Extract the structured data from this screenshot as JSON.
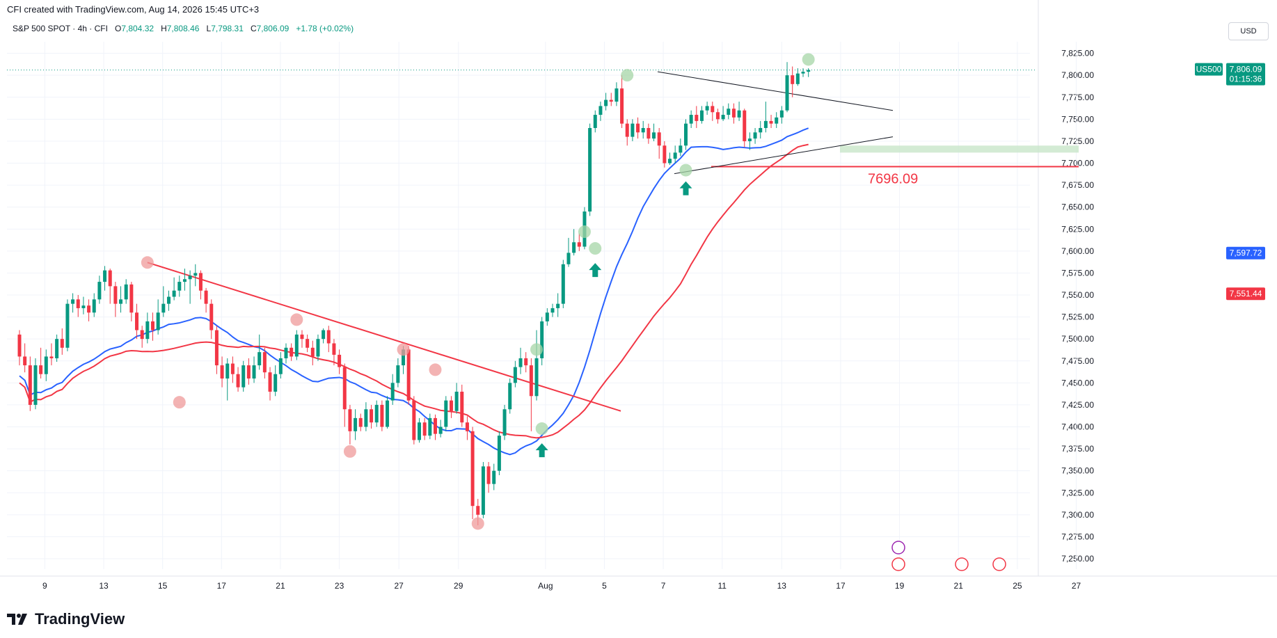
{
  "header": {
    "text": "CFI created with TradingView.com, Aug 14, 2026 15:45 UTC+3"
  },
  "legend": {
    "symbol": "S&P 500 SPOT · 4h · CFI",
    "o_label": "O",
    "o": "7,804.32",
    "h_label": "H",
    "h": "7,808.46",
    "l_label": "L",
    "l": "7,798.31",
    "c_label": "C",
    "c": "7,806.09",
    "change": "+1.78 (+0.02%)"
  },
  "currency": "USD",
  "brand": "TradingView",
  "colors": {
    "up": "#089981",
    "down": "#f23645",
    "ma_fast": "#2962ff",
    "ma_slow": "#f23645",
    "zone": "#c8e6c9",
    "highlight_green": "#a5d6a7",
    "highlight_red": "#ef9a9a"
  },
  "chart_data": {
    "type": "candlestick",
    "timeframe": "4h",
    "y_ticks": [
      "7,825.00",
      "7,800.00",
      "7,775.00",
      "7,750.00",
      "7,725.00",
      "7,700.00",
      "7,675.00",
      "7,650.00",
      "7,625.00",
      "7,600.00",
      "7,575.00",
      "7,550.00",
      "7,525.00",
      "7,500.00",
      "7,475.00",
      "7,450.00",
      "7,425.00",
      "7,400.00",
      "7,375.00",
      "7,350.00",
      "7,325.00",
      "7,300.00",
      "7,275.00",
      "7,250.00"
    ],
    "ylim": [
      7235,
      7845
    ],
    "x_ticks": [
      "9",
      "13",
      "15",
      "17",
      "21",
      "23",
      "27",
      "29",
      "Aug",
      "5",
      "7",
      "11",
      "13",
      "17",
      "19",
      "21",
      "25",
      "27"
    ],
    "price_labels": [
      {
        "symbol": "US500",
        "value": "7,806.09",
        "countdown": "01:15:36",
        "color": "#089981"
      },
      {
        "value": "7,597.72",
        "color": "#2962ff"
      },
      {
        "value": "7,551.44",
        "color": "#f23645"
      }
    ],
    "support_level": {
      "value": 7696.09,
      "label": "7696.09"
    },
    "demand_zone": [
      7712,
      7720
    ],
    "candles": [
      [
        7505,
        7480,
        7510,
        7470
      ],
      [
        7480,
        7470,
        7495,
        7462
      ],
      [
        7470,
        7425,
        7480,
        7418
      ],
      [
        7425,
        7470,
        7478,
        7420
      ],
      [
        7470,
        7460,
        7490,
        7455
      ],
      [
        7460,
        7480,
        7488,
        7452
      ],
      [
        7480,
        7478,
        7495,
        7470
      ],
      [
        7478,
        7500,
        7505,
        7474
      ],
      [
        7500,
        7490,
        7512,
        7482
      ],
      [
        7490,
        7540,
        7545,
        7486
      ],
      [
        7540,
        7545,
        7552,
        7530
      ],
      [
        7545,
        7535,
        7550,
        7525
      ],
      [
        7535,
        7538,
        7548,
        7528
      ],
      [
        7538,
        7530,
        7545,
        7520
      ],
      [
        7530,
        7545,
        7552,
        7525
      ],
      [
        7545,
        7565,
        7572,
        7540
      ],
      [
        7565,
        7578,
        7583,
        7555
      ],
      [
        7578,
        7560,
        7580,
        7540
      ],
      [
        7560,
        7540,
        7565,
        7525
      ],
      [
        7540,
        7545,
        7560,
        7530
      ],
      [
        7545,
        7562,
        7568,
        7540
      ],
      [
        7562,
        7530,
        7565,
        7520
      ],
      [
        7530,
        7510,
        7540,
        7500
      ],
      [
        7510,
        7500,
        7515,
        7490
      ],
      [
        7500,
        7520,
        7530,
        7495
      ],
      [
        7520,
        7510,
        7530,
        7498
      ],
      [
        7510,
        7530,
        7545,
        7505
      ],
      [
        7530,
        7540,
        7560,
        7525
      ],
      [
        7540,
        7548,
        7555,
        7532
      ],
      [
        7548,
        7555,
        7570,
        7544
      ],
      [
        7555,
        7565,
        7572,
        7548
      ],
      [
        7565,
        7568,
        7580,
        7555
      ],
      [
        7568,
        7572,
        7578,
        7540
      ],
      [
        7572,
        7575,
        7585,
        7560
      ],
      [
        7575,
        7555,
        7578,
        7545
      ],
      [
        7555,
        7540,
        7558,
        7530
      ],
      [
        7540,
        7510,
        7545,
        7500
      ],
      [
        7510,
        7470,
        7515,
        7460
      ],
      [
        7470,
        7455,
        7480,
        7445
      ],
      [
        7455,
        7472,
        7478,
        7430
      ],
      [
        7472,
        7460,
        7480,
        7450
      ],
      [
        7460,
        7445,
        7468,
        7440
      ],
      [
        7445,
        7470,
        7475,
        7440
      ],
      [
        7470,
        7455,
        7478,
        7448
      ],
      [
        7455,
        7470,
        7480,
        7450
      ],
      [
        7470,
        7485,
        7505,
        7465
      ],
      [
        7485,
        7462,
        7490,
        7455
      ],
      [
        7462,
        7440,
        7468,
        7430
      ],
      [
        7440,
        7460,
        7470,
        7435
      ],
      [
        7460,
        7478,
        7485,
        7455
      ],
      [
        7478,
        7490,
        7495,
        7472
      ],
      [
        7490,
        7480,
        7495,
        7475
      ],
      [
        7480,
        7505,
        7510,
        7476
      ],
      [
        7505,
        7500,
        7510,
        7490
      ],
      [
        7500,
        7490,
        7505,
        7485
      ],
      [
        7490,
        7480,
        7498,
        7470
      ],
      [
        7480,
        7500,
        7505,
        7475
      ],
      [
        7500,
        7510,
        7512,
        7495
      ],
      [
        7510,
        7495,
        7515,
        7485
      ],
      [
        7495,
        7482,
        7500,
        7470
      ],
      [
        7482,
        7468,
        7488,
        7460
      ],
      [
        7468,
        7420,
        7472,
        7400
      ],
      [
        7420,
        7395,
        7425,
        7380
      ],
      [
        7395,
        7410,
        7420,
        7385
      ],
      [
        7410,
        7400,
        7415,
        7395
      ],
      [
        7400,
        7420,
        7428,
        7395
      ],
      [
        7420,
        7405,
        7425,
        7398
      ],
      [
        7405,
        7425,
        7430,
        7400
      ],
      [
        7425,
        7400,
        7430,
        7395
      ],
      [
        7400,
        7430,
        7435,
        7398
      ],
      [
        7430,
        7450,
        7460,
        7425
      ],
      [
        7450,
        7470,
        7478,
        7445
      ],
      [
        7470,
        7488,
        7492,
        7460
      ],
      [
        7488,
        7430,
        7492,
        7425
      ],
      [
        7430,
        7385,
        7435,
        7380
      ],
      [
        7385,
        7405,
        7410,
        7382
      ],
      [
        7405,
        7390,
        7410,
        7385
      ],
      [
        7390,
        7410,
        7415,
        7386
      ],
      [
        7410,
        7392,
        7414,
        7385
      ],
      [
        7392,
        7400,
        7408,
        7388
      ],
      [
        7400,
        7430,
        7435,
        7395
      ],
      [
        7430,
        7418,
        7435,
        7410
      ],
      [
        7418,
        7440,
        7450,
        7415
      ],
      [
        7440,
        7405,
        7448,
        7400
      ],
      [
        7405,
        7395,
        7412,
        7385
      ],
      [
        7395,
        7310,
        7400,
        7295
      ],
      [
        7310,
        7300,
        7318,
        7288
      ],
      [
        7300,
        7355,
        7360,
        7296
      ],
      [
        7355,
        7335,
        7360,
        7325
      ],
      [
        7335,
        7350,
        7358,
        7328
      ],
      [
        7350,
        7390,
        7395,
        7345
      ],
      [
        7390,
        7420,
        7425,
        7385
      ],
      [
        7420,
        7450,
        7455,
        7415
      ],
      [
        7450,
        7468,
        7475,
        7445
      ],
      [
        7468,
        7478,
        7490,
        7460
      ],
      [
        7478,
        7470,
        7485,
        7462
      ],
      [
        7470,
        7435,
        7478,
        7395
      ],
      [
        7435,
        7478,
        7510,
        7430
      ],
      [
        7478,
        7520,
        7525,
        7470
      ],
      [
        7520,
        7530,
        7535,
        7515
      ],
      [
        7530,
        7535,
        7540,
        7525
      ],
      [
        7535,
        7540,
        7552,
        7525
      ],
      [
        7540,
        7585,
        7590,
        7535
      ],
      [
        7585,
        7598,
        7615,
        7582
      ],
      [
        7598,
        7610,
        7625,
        7595
      ],
      [
        7610,
        7605,
        7620,
        7600
      ],
      [
        7605,
        7645,
        7650,
        7602
      ],
      [
        7645,
        7740,
        7745,
        7640
      ],
      [
        7740,
        7755,
        7760,
        7735
      ],
      [
        7755,
        7765,
        7770,
        7748
      ],
      [
        7765,
        7772,
        7780,
        7760
      ],
      [
        7772,
        7770,
        7780,
        7765
      ],
      [
        7770,
        7785,
        7792,
        7765
      ],
      [
        7785,
        7745,
        7800,
        7740
      ],
      [
        7745,
        7730,
        7750,
        7720
      ],
      [
        7730,
        7745,
        7750,
        7725
      ],
      [
        7745,
        7735,
        7752,
        7728
      ],
      [
        7735,
        7740,
        7748,
        7728
      ],
      [
        7740,
        7728,
        7745,
        7722
      ],
      [
        7728,
        7735,
        7745,
        7725
      ],
      [
        7735,
        7720,
        7740,
        7705
      ],
      [
        7720,
        7700,
        7725,
        7695
      ],
      [
        7700,
        7705,
        7712,
        7698
      ],
      [
        7705,
        7712,
        7720,
        7700
      ],
      [
        7712,
        7720,
        7728,
        7708
      ],
      [
        7720,
        7745,
        7750,
        7715
      ],
      [
        7745,
        7755,
        7760,
        7740
      ],
      [
        7755,
        7748,
        7765,
        7740
      ],
      [
        7748,
        7760,
        7765,
        7745
      ],
      [
        7760,
        7765,
        7770,
        7755
      ],
      [
        7765,
        7758,
        7770,
        7748
      ],
      [
        7758,
        7750,
        7762,
        7745
      ],
      [
        7750,
        7755,
        7765,
        7748
      ],
      [
        7755,
        7762,
        7768,
        7750
      ],
      [
        7762,
        7752,
        7768,
        7745
      ],
      [
        7752,
        7760,
        7770,
        7748
      ],
      [
        7760,
        7725,
        7762,
        7718
      ],
      [
        7725,
        7728,
        7735,
        7715
      ],
      [
        7728,
        7735,
        7740,
        7722
      ],
      [
        7735,
        7740,
        7748,
        7728
      ],
      [
        7740,
        7748,
        7770,
        7735
      ],
      [
        7748,
        7745,
        7755,
        7740
      ],
      [
        7745,
        7752,
        7758,
        7740
      ],
      [
        7752,
        7760,
        7765,
        7745
      ],
      [
        7760,
        7800,
        7815,
        7758
      ],
      [
        7800,
        7790,
        7810,
        7775
      ],
      [
        7790,
        7802,
        7808,
        7788
      ],
      [
        7802,
        7804,
        7808,
        7798
      ],
      [
        7804,
        7806,
        7808,
        7798
      ]
    ],
    "markers": [
      {
        "type": "circle",
        "color": "red",
        "candle": 24,
        "price": 7587
      },
      {
        "type": "circle",
        "color": "red",
        "candle": 30,
        "price": 7428
      },
      {
        "type": "circle",
        "color": "red",
        "candle": 52,
        "price": 7522
      },
      {
        "type": "circle",
        "color": "red",
        "candle": 62,
        "price": 7372
      },
      {
        "type": "circle",
        "color": "red",
        "candle": 72,
        "price": 7488
      },
      {
        "type": "circle",
        "color": "red",
        "candle": 78,
        "price": 7465
      },
      {
        "type": "circle",
        "color": "red",
        "candle": 86,
        "price": 7290
      },
      {
        "type": "circle",
        "color": "green",
        "candle": 97,
        "price": 7488
      },
      {
        "type": "circle",
        "color": "green",
        "candle": 98,
        "price": 7398
      },
      {
        "type": "circle",
        "color": "green",
        "candle": 106,
        "price": 7622
      },
      {
        "type": "circle",
        "color": "green",
        "candle": 108,
        "price": 7603
      },
      {
        "type": "circle",
        "color": "green",
        "candle": 114,
        "price": 7800
      },
      {
        "type": "circle",
        "color": "green",
        "candle": 125,
        "price": 7692
      },
      {
        "type": "circle",
        "color": "green",
        "candle": 148,
        "price": 7818
      },
      {
        "type": "arrow",
        "candle": 98,
        "price": 7375
      },
      {
        "type": "arrow",
        "candle": 108,
        "price": 7580
      },
      {
        "type": "arrow",
        "candle": 125,
        "price": 7673
      }
    ]
  }
}
